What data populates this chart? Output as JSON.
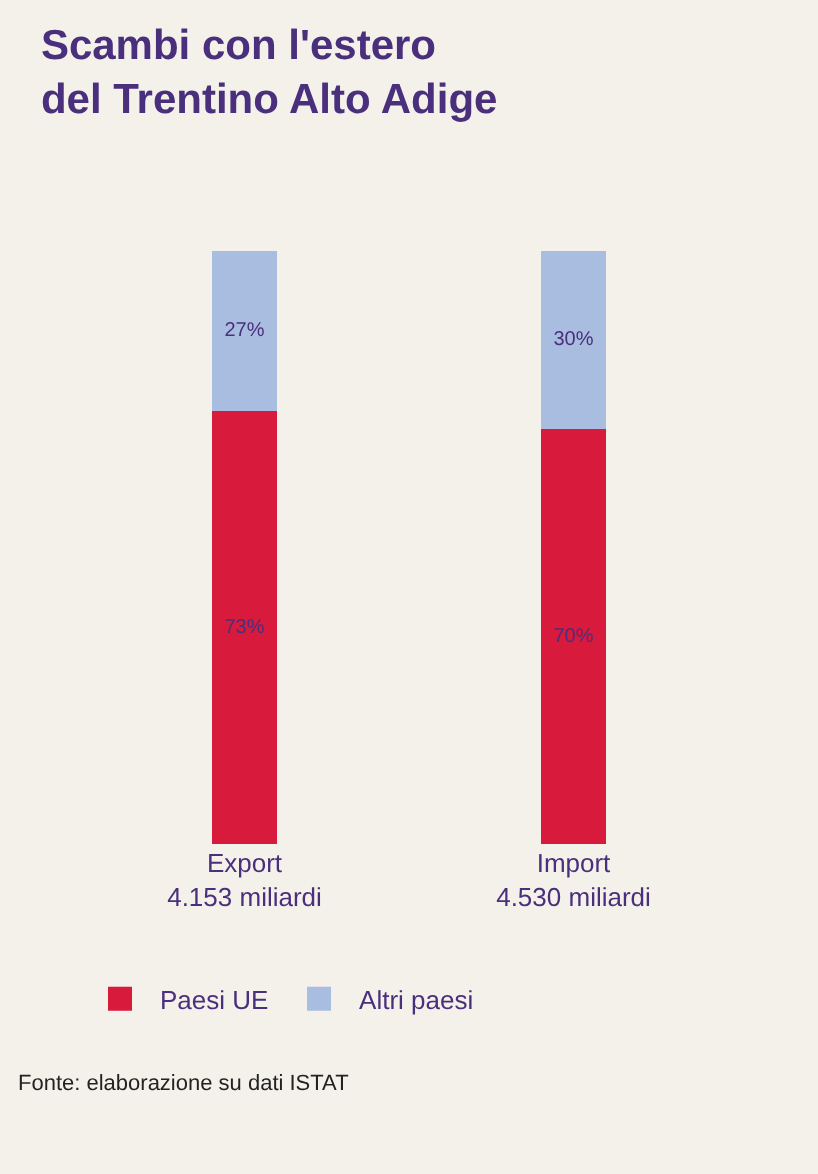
{
  "chart_data": {
    "type": "bar",
    "title": "Scambi con l'estero\ndel Trentino Alto Adige",
    "categories": [
      "Export\n4.153 miliardi",
      "Import\n4.530 miliardi"
    ],
    "stacked": true,
    "series": [
      {
        "name": "Paesi UE",
        "color": "#d81a3c",
        "values": [
          73,
          70
        ],
        "value_labels": [
          "73%",
          "70%"
        ]
      },
      {
        "name": "Altri paesi",
        "color": "#a9bde0",
        "values": [
          27,
          30
        ],
        "value_labels": [
          "27%",
          "30%"
        ]
      }
    ],
    "legend": "bottom left",
    "annotations": [
      "Fonte: elaborazione su dati ISTAT"
    ]
  }
}
